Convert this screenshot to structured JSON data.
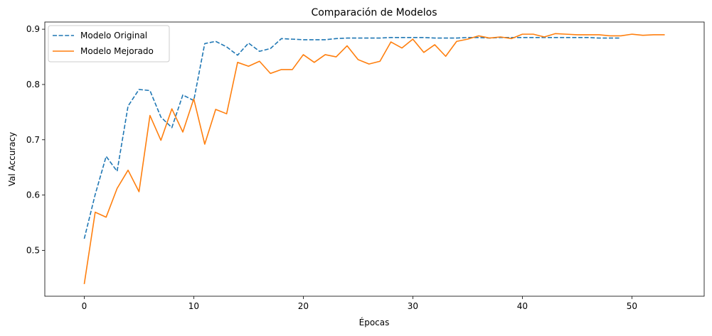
{
  "chart_data": {
    "type": "line",
    "title": "Comparación de Modelos",
    "xlabel": "Épocas",
    "ylabel": "Val Accuracy",
    "xlim": [
      -3.6,
      56.6
    ],
    "ylim": [
      0.417,
      0.913
    ],
    "xticks": [
      0,
      10,
      20,
      30,
      40,
      50
    ],
    "yticks": [
      0.5,
      0.6,
      0.7,
      0.8,
      0.9
    ],
    "xtick_labels": [
      "0",
      "10",
      "20",
      "30",
      "40",
      "50"
    ],
    "ytick_labels": [
      "0.5",
      "0.6",
      "0.7",
      "0.8",
      "0.9"
    ],
    "grid": false,
    "legend_position": "top-left",
    "series": [
      {
        "name": "Modelo Original",
        "color": "#1f77b4",
        "style": "dashed",
        "x": [
          0,
          1,
          2,
          3,
          4,
          5,
          6,
          7,
          8,
          9,
          10,
          11,
          12,
          13,
          14,
          15,
          16,
          17,
          18,
          19,
          20,
          21,
          22,
          23,
          24,
          25,
          26,
          27,
          28,
          29,
          30,
          31,
          32,
          33,
          34,
          35,
          36,
          37,
          38,
          39,
          40,
          41,
          42,
          43,
          44,
          45,
          46,
          47,
          48,
          49
        ],
        "values": [
          0.521,
          0.601,
          0.67,
          0.643,
          0.761,
          0.791,
          0.789,
          0.741,
          0.722,
          0.781,
          0.771,
          0.874,
          0.878,
          0.868,
          0.853,
          0.875,
          0.86,
          0.865,
          0.883,
          0.882,
          0.881,
          0.881,
          0.881,
          0.883,
          0.884,
          0.884,
          0.884,
          0.884,
          0.885,
          0.885,
          0.885,
          0.885,
          0.884,
          0.884,
          0.884,
          0.885,
          0.885,
          0.884,
          0.885,
          0.885,
          0.885,
          0.885,
          0.885,
          0.885,
          0.885,
          0.885,
          0.885,
          0.884,
          0.884,
          0.884
        ]
      },
      {
        "name": "Modelo Mejorado",
        "color": "#ff7f0e",
        "style": "solid",
        "x": [
          0,
          1,
          2,
          3,
          4,
          5,
          6,
          7,
          8,
          9,
          10,
          11,
          12,
          13,
          14,
          15,
          16,
          17,
          18,
          19,
          20,
          21,
          22,
          23,
          24,
          25,
          26,
          27,
          28,
          29,
          30,
          31,
          32,
          33,
          34,
          35,
          36,
          37,
          38,
          39,
          40,
          41,
          42,
          43,
          44,
          45,
          46,
          47,
          48,
          49,
          50,
          51,
          52,
          53
        ],
        "values": [
          0.439,
          0.569,
          0.56,
          0.612,
          0.645,
          0.606,
          0.744,
          0.699,
          0.756,
          0.714,
          0.774,
          0.692,
          0.755,
          0.747,
          0.84,
          0.833,
          0.842,
          0.82,
          0.827,
          0.827,
          0.854,
          0.84,
          0.854,
          0.85,
          0.87,
          0.845,
          0.837,
          0.842,
          0.877,
          0.866,
          0.882,
          0.858,
          0.872,
          0.851,
          0.878,
          0.882,
          0.888,
          0.884,
          0.886,
          0.883,
          0.891,
          0.891,
          0.886,
          0.892,
          0.891,
          0.89,
          0.89,
          0.89,
          0.888,
          0.888,
          0.891,
          0.889,
          0.89,
          0.89
        ]
      }
    ]
  }
}
